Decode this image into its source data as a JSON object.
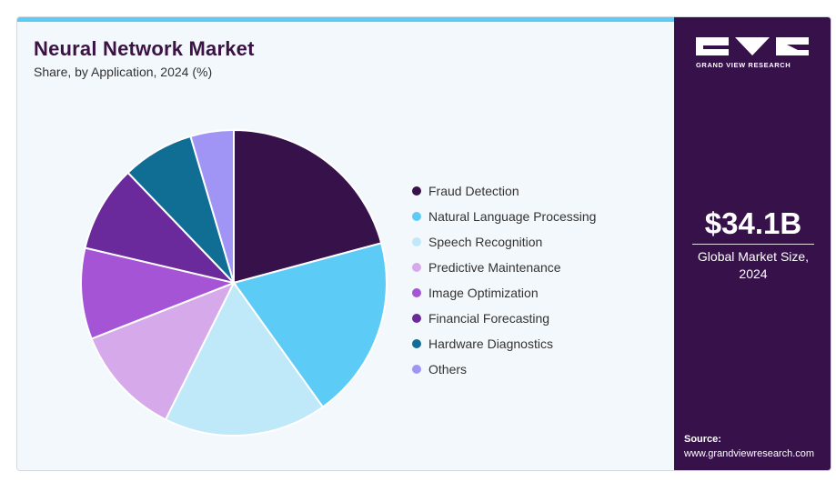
{
  "header": {
    "title": "Neural Network Market",
    "subtitle": "Share, by Application, 2024 (%)"
  },
  "brand": {
    "logo_icon": "gvr-logo-icon",
    "name": "GRAND VIEW RESEARCH"
  },
  "highlight": {
    "value": "$34.1B",
    "label_line1": "Global Market Size,",
    "label_line2": "2024"
  },
  "source": {
    "label": "Source:",
    "url": "www.grandviewresearch.com"
  },
  "colors": {
    "accent": "#5ccbf5",
    "sidebar": "#36114a",
    "title": "#3a1244"
  },
  "chart_data": {
    "type": "pie",
    "title": "Neural Network Market",
    "subtitle": "Share, by Application, 2024 (%)",
    "legend_position": "right",
    "start_angle_deg": 0,
    "direction": "clockwise",
    "slices": [
      {
        "label": "Fraud Detection",
        "value": 20.5,
        "color": "#36114a"
      },
      {
        "label": "Natural Language Processing",
        "value": 19.0,
        "color": "#5ccbf5"
      },
      {
        "label": "Speech Recognition",
        "value": 17.0,
        "color": "#bfe8f8"
      },
      {
        "label": "Predictive Maintenance",
        "value": 11.5,
        "color": "#d6aaea"
      },
      {
        "label": "Image Optimization",
        "value": 9.5,
        "color": "#a654d6"
      },
      {
        "label": "Financial Forecasting",
        "value": 9.0,
        "color": "#6a2a9c"
      },
      {
        "label": "Hardware Diagnostics",
        "value": 7.5,
        "color": "#106d94"
      },
      {
        "label": "Others",
        "value": 4.5,
        "color": "#a095f5"
      }
    ]
  }
}
